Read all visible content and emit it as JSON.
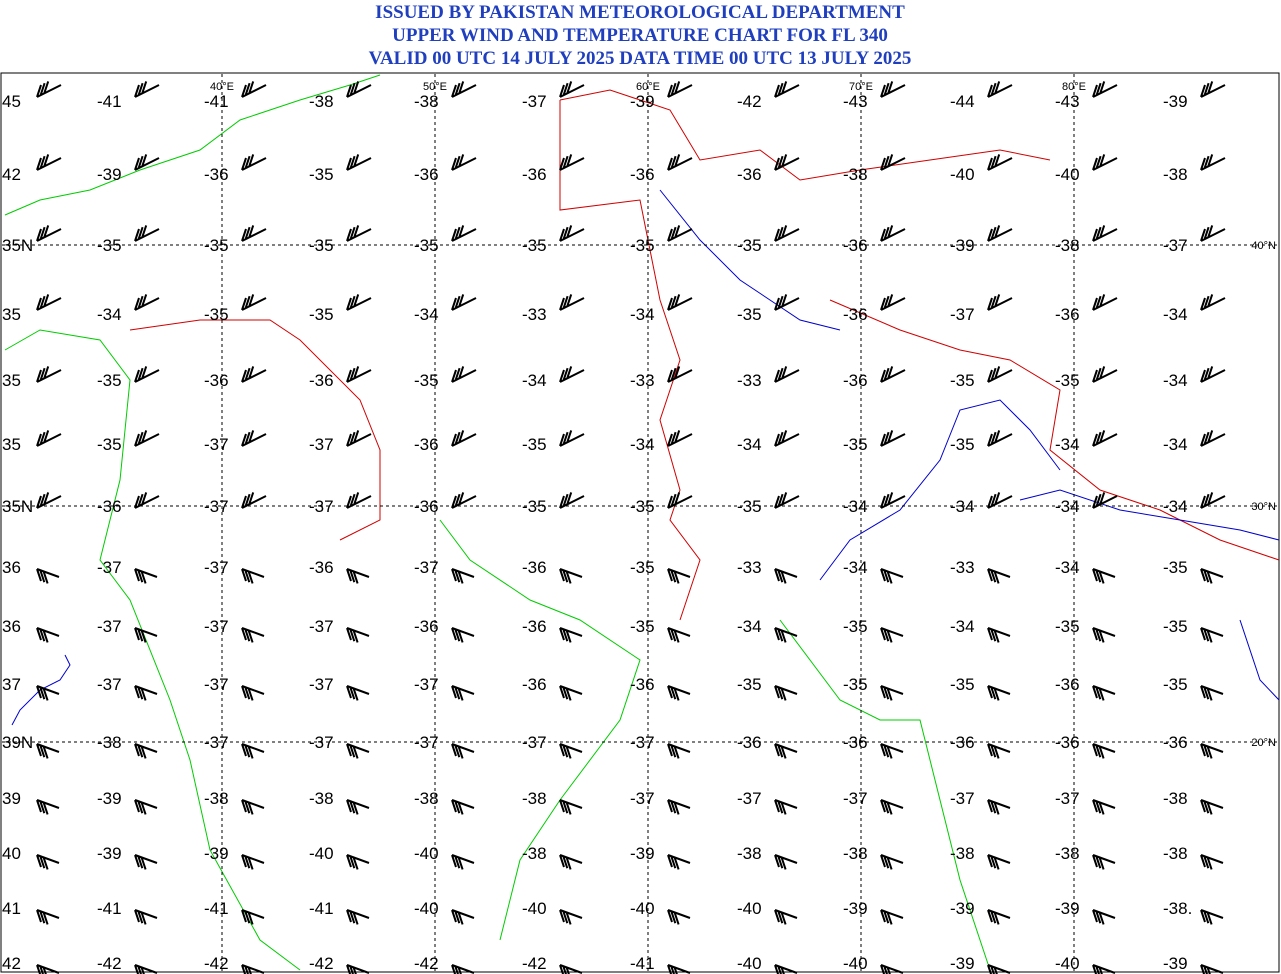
{
  "header": {
    "lines": [
      "ISSUED BY PAKISTAN METEOROLOGICAL DEPARTMENT",
      "UPPER WIND AND TEMPERATURE CHART FOR FL 340",
      "VALID 00 UTC 14 JULY 2025 DATA TIME 00 UTC 13 JULY 2025"
    ]
  },
  "longitude_labels": [
    "40°E",
    "50°E",
    "60°E",
    "70°E",
    "80°E"
  ],
  "latitude_labels": [
    "40°N",
    "30°N",
    "20°N"
  ],
  "temperature_rows": [
    [
      "45",
      "-41",
      "-41",
      "-38",
      "-38",
      "-37",
      "-39",
      "-42",
      "-43",
      "-44",
      "-43",
      "-39"
    ],
    [
      "42",
      "-39",
      "-36",
      "-35",
      "-36",
      "-36",
      "-36",
      "-36",
      "-38",
      "-40",
      "-40",
      "-38"
    ],
    [
      "35N",
      "-35",
      "-35",
      "-35",
      "-35",
      "-35",
      "-35",
      "-35",
      "-36",
      "-39",
      "-38",
      "-37"
    ],
    [
      "35",
      "-34",
      "-35",
      "-35",
      "-34",
      "-33",
      "-34",
      "-35",
      "-36",
      "-37",
      "-36",
      "-34"
    ],
    [
      "35",
      "-35",
      "-36",
      "-36",
      "-35",
      "-34",
      "-33",
      "-33",
      "-36",
      "-35",
      "-35",
      "-34"
    ],
    [
      "35",
      "-35",
      "-37",
      "-37",
      "-36",
      "-35",
      "-34",
      "-34",
      "-35",
      "-35",
      "-34",
      "-34"
    ],
    [
      "35N",
      "-36",
      "-37",
      "-37",
      "-36",
      "-35",
      "-35",
      "-35",
      "-34",
      "-34",
      "-34",
      "-34"
    ],
    [
      "36",
      "-37",
      "-37",
      "-36",
      "-37",
      "-36",
      "-35",
      "-33",
      "-34",
      "-33",
      "-34",
      "-35"
    ],
    [
      "36",
      "-37",
      "-37",
      "-37",
      "-36",
      "-36",
      "-35",
      "-34",
      "-35",
      "-34",
      "-35",
      "-35"
    ],
    [
      "37",
      "-37",
      "-37",
      "-37",
      "-37",
      "-36",
      "-36",
      "-35",
      "-35",
      "-35",
      "-36",
      "-35"
    ],
    [
      "39N",
      "-38",
      "-37",
      "-37",
      "-37",
      "-37",
      "-37",
      "-36",
      "-36",
      "-36",
      "-36",
      "-36"
    ],
    [
      "39",
      "-39",
      "-38",
      "-38",
      "-38",
      "-38",
      "-37",
      "-37",
      "-37",
      "-37",
      "-37",
      "-38"
    ],
    [
      "40",
      "-39",
      "-39",
      "-40",
      "-40",
      "-38",
      "-39",
      "-38",
      "-38",
      "-38",
      "-38",
      "-38"
    ],
    [
      "41",
      "-41",
      "-41",
      "-41",
      "-40",
      "-40",
      "-40",
      "-40",
      "-39",
      "-39",
      "-39",
      "-38."
    ],
    [
      "42",
      "-42",
      "-42",
      "-42",
      "-42",
      "-42",
      "-41",
      "-40",
      "-40",
      "-39",
      "-40",
      "-39"
    ]
  ]
}
